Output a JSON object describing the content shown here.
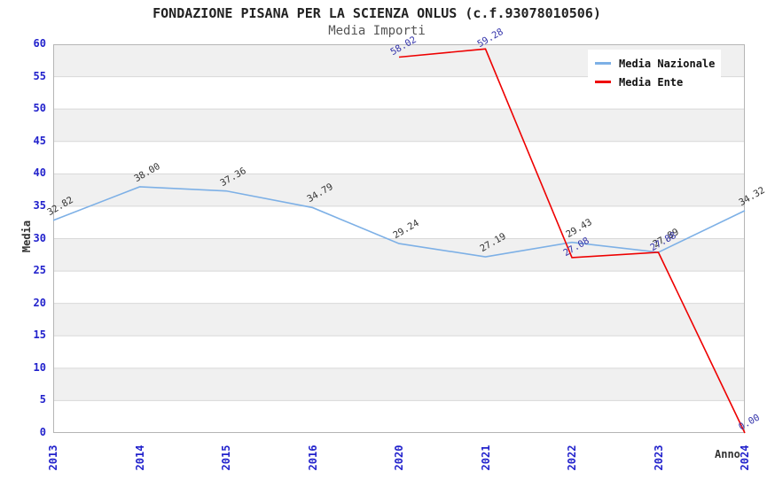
{
  "chart_data": {
    "type": "line",
    "title": "FONDAZIONE PISANA PER LA SCIENZA ONLUS (c.f.93078010506)",
    "subtitle": "Media Importi",
    "xlabel": "Anno",
    "ylabel": "Media",
    "ylim": [
      0,
      60
    ],
    "ytick_step": 5,
    "grid": true,
    "band_fill": true,
    "legend_position": "top-right",
    "categories": [
      "2013",
      "2014",
      "2015",
      "2016",
      "2020",
      "2021",
      "2022",
      "2023",
      "2024"
    ],
    "series": [
      {
        "name": "Media Nazionale",
        "color": "#7db0e6",
        "label_color": "#333333",
        "values": [
          32.82,
          38.0,
          37.36,
          34.79,
          29.24,
          27.19,
          29.43,
          27.89,
          34.32
        ]
      },
      {
        "name": "Media Ente",
        "color": "#ee0000",
        "label_color": "#3333aa",
        "values": [
          null,
          null,
          null,
          null,
          58.02,
          59.28,
          27.08,
          27.88,
          0.0
        ]
      }
    ]
  },
  "colors": {
    "tick_label": "#2222cc",
    "band": "#f0f0f0",
    "grid": "#d8d8d8",
    "plot_border": "#b5b5b5",
    "title": "#222222",
    "subtitle": "#555555",
    "axis_label": "#333333"
  }
}
